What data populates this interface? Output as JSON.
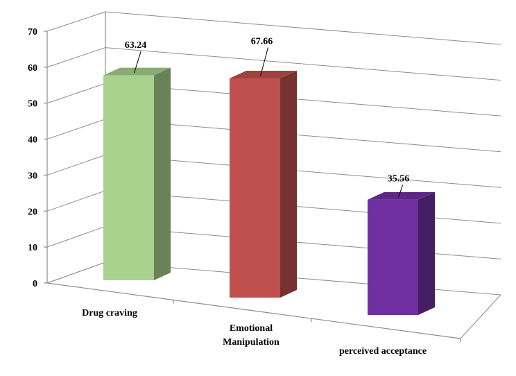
{
  "chart_data": {
    "type": "bar",
    "title": "",
    "xlabel": "",
    "ylabel": "",
    "ylim": [
      0,
      70
    ],
    "yticks": [
      0,
      10,
      20,
      30,
      40,
      50,
      60,
      70
    ],
    "categories": [
      "Drug craving",
      "Emotional Manipulation",
      "perceived acceptance"
    ],
    "category_lines": [
      [
        "Drug craving"
      ],
      [
        "Emotional",
        "Manipulation"
      ],
      [
        "perceived acceptance"
      ]
    ],
    "values": [
      63.24,
      67.66,
      35.56
    ],
    "data_labels": [
      "63.24",
      "67.66",
      "35.56"
    ],
    "colors": [
      "#a9d18e",
      "#c0504d",
      "#7030a0"
    ],
    "grid": true,
    "legend": "none",
    "style": "3d-column"
  }
}
